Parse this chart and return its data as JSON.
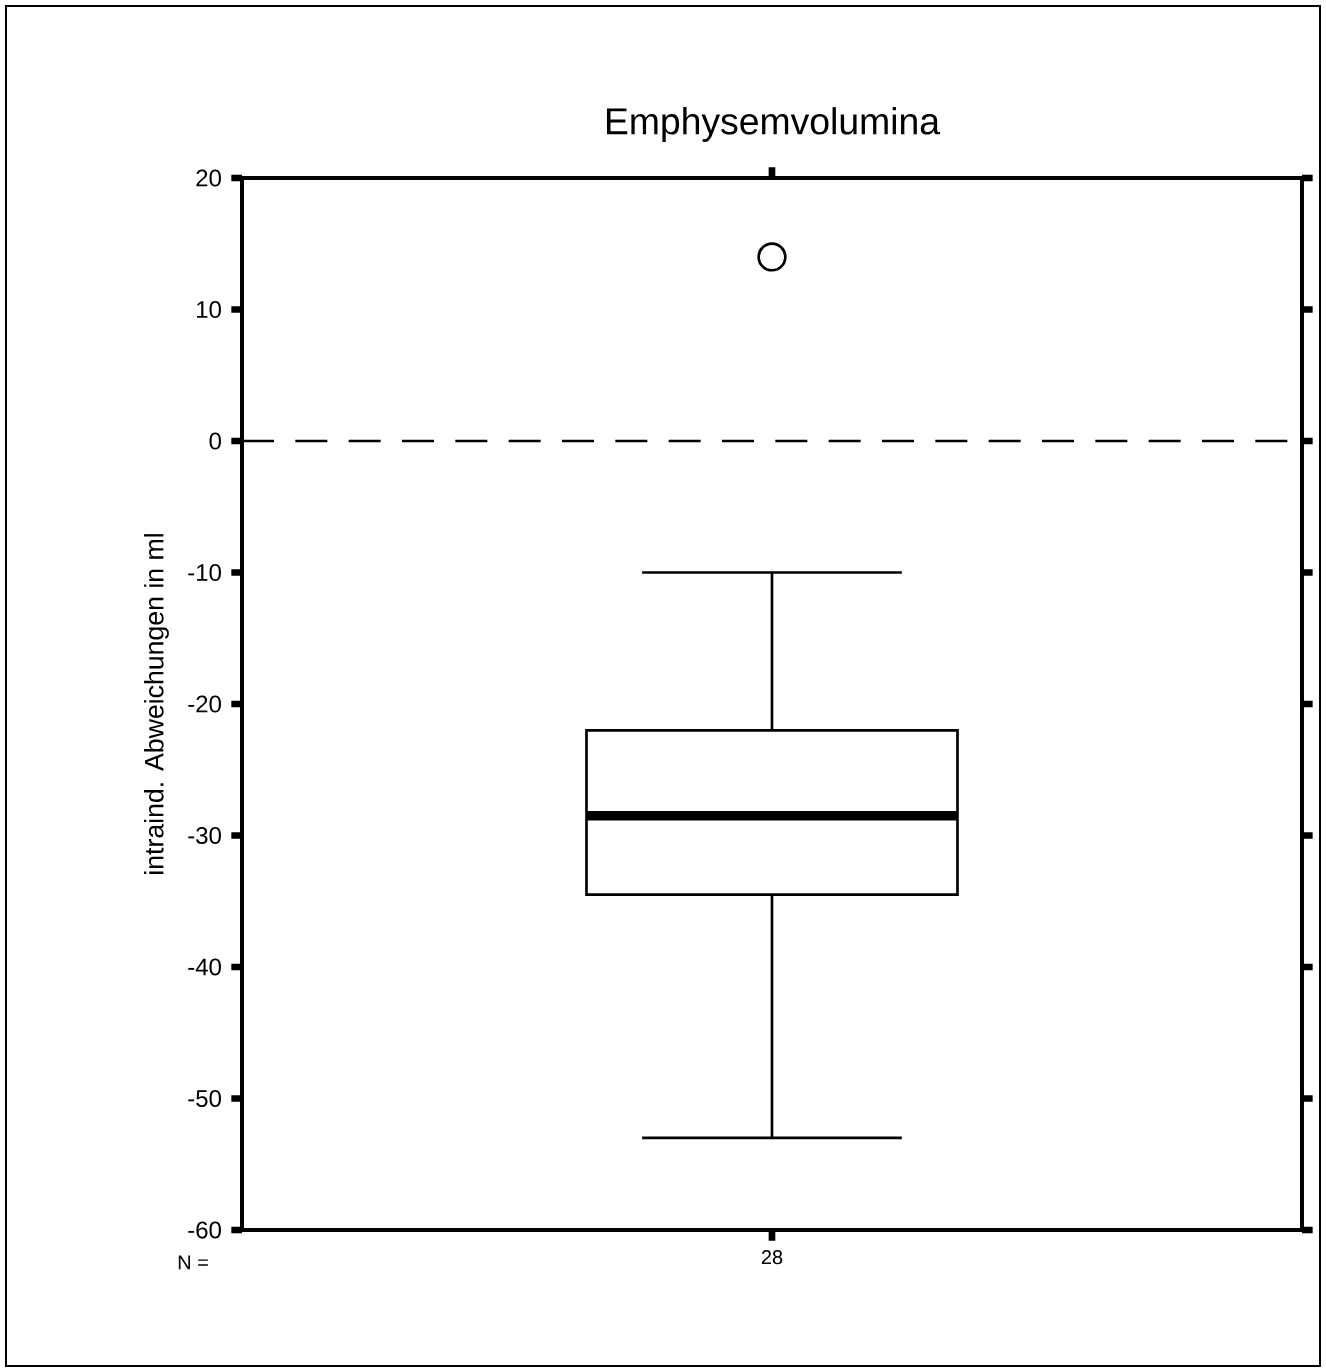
{
  "chart_data": {
    "type": "box",
    "title": "Emphysemvolumina",
    "ylabel": "intraind. Abweichungen in ml",
    "categories": [
      "28"
    ],
    "boxes": [
      {
        "low": -53,
        "q1": -34.5,
        "median": -28.5,
        "q3": -22,
        "high": -10,
        "outliers": [
          14
        ]
      }
    ],
    "color": "#000000",
    "ylim": [
      -60,
      20
    ],
    "yticks": [
      -60,
      -50,
      -40,
      -30,
      -20,
      -10,
      0,
      10,
      20
    ],
    "ref_lines": [
      {
        "axis": "y",
        "value": 0,
        "line_style": "dashed",
        "color": "#000000"
      }
    ],
    "annotations": [
      "N ="
    ]
  }
}
